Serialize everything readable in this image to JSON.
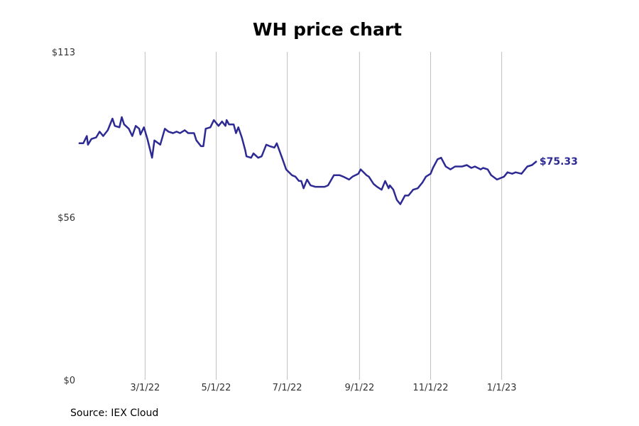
{
  "chart_data": {
    "type": "line",
    "title": "WH price chart",
    "source": "Source: IEX Cloud",
    "series_color": "#2e2a94",
    "grid": "vertical",
    "y_ticks": [
      {
        "value": 0,
        "label": "$0"
      },
      {
        "value": 56,
        "label": "$56"
      },
      {
        "value": 113,
        "label": "$113"
      }
    ],
    "ylim": [
      0,
      113
    ],
    "x_ticks": [
      {
        "date": "2022-03-01",
        "label": "3/1/22"
      },
      {
        "date": "2022-05-01",
        "label": "5/1/22"
      },
      {
        "date": "2022-07-01",
        "label": "7/1/22"
      },
      {
        "date": "2022-09-01",
        "label": "9/1/22"
      },
      {
        "date": "2022-11-01",
        "label": "11/1/22"
      },
      {
        "date": "2023-01-01",
        "label": "1/1/23"
      }
    ],
    "xlim": [
      "2022-01-01",
      "2023-03-31"
    ],
    "last_value_label": "$75.33",
    "series": [
      {
        "points": [
          [
            "2022-01-03",
            81.5
          ],
          [
            "2022-01-07",
            81.5
          ],
          [
            "2022-01-10",
            84.0
          ],
          [
            "2022-01-11",
            81.0
          ],
          [
            "2022-01-14",
            83.0
          ],
          [
            "2022-01-18",
            83.5
          ],
          [
            "2022-01-21",
            85.5
          ],
          [
            "2022-01-24",
            84.0
          ],
          [
            "2022-01-28",
            86.0
          ],
          [
            "2022-02-01",
            90.0
          ],
          [
            "2022-02-03",
            87.5
          ],
          [
            "2022-02-07",
            87.0
          ],
          [
            "2022-02-09",
            90.5
          ],
          [
            "2022-02-11",
            88.0
          ],
          [
            "2022-02-15",
            86.5
          ],
          [
            "2022-02-18",
            84.0
          ],
          [
            "2022-02-21",
            87.5
          ],
          [
            "2022-02-24",
            86.5
          ],
          [
            "2022-02-25",
            84.5
          ],
          [
            "2022-02-28",
            87.0
          ],
          [
            "2022-03-03",
            83.0
          ],
          [
            "2022-03-07",
            76.5
          ],
          [
            "2022-03-09",
            82.5
          ],
          [
            "2022-03-14",
            81.0
          ],
          [
            "2022-03-18",
            86.5
          ],
          [
            "2022-03-21",
            85.5
          ],
          [
            "2022-03-25",
            85.0
          ],
          [
            "2022-03-28",
            85.5
          ],
          [
            "2022-03-31",
            85.0
          ],
          [
            "2022-04-04",
            86.0
          ],
          [
            "2022-04-07",
            85.0
          ],
          [
            "2022-04-12",
            85.0
          ],
          [
            "2022-04-14",
            82.5
          ],
          [
            "2022-04-18",
            80.5
          ],
          [
            "2022-04-20",
            80.5
          ],
          [
            "2022-04-22",
            86.5
          ],
          [
            "2022-04-26",
            87.0
          ],
          [
            "2022-04-29",
            89.5
          ],
          [
            "2022-05-03",
            87.5
          ],
          [
            "2022-05-06",
            89.0
          ],
          [
            "2022-05-09",
            87.5
          ],
          [
            "2022-05-10",
            89.5
          ],
          [
            "2022-05-12",
            88.0
          ],
          [
            "2022-05-16",
            88.0
          ],
          [
            "2022-05-18",
            85.0
          ],
          [
            "2022-05-20",
            87.0
          ],
          [
            "2022-05-23",
            83.5
          ],
          [
            "2022-05-26",
            79.0
          ],
          [
            "2022-05-27",
            77.0
          ],
          [
            "2022-05-31",
            76.5
          ],
          [
            "2022-06-02",
            78.0
          ],
          [
            "2022-06-06",
            76.5
          ],
          [
            "2022-06-09",
            77.0
          ],
          [
            "2022-06-13",
            81.0
          ],
          [
            "2022-06-16",
            80.5
          ],
          [
            "2022-06-20",
            80.0
          ],
          [
            "2022-06-22",
            81.5
          ],
          [
            "2022-06-27",
            76.0
          ],
          [
            "2022-06-30",
            72.5
          ],
          [
            "2022-07-05",
            70.5
          ],
          [
            "2022-07-08",
            70.0
          ],
          [
            "2022-07-11",
            68.5
          ],
          [
            "2022-07-13",
            68.5
          ],
          [
            "2022-07-15",
            66.0
          ],
          [
            "2022-07-18",
            69.0
          ],
          [
            "2022-07-21",
            67.0
          ],
          [
            "2022-07-25",
            66.5
          ],
          [
            "2022-07-28",
            66.5
          ],
          [
            "2022-08-02",
            66.5
          ],
          [
            "2022-08-05",
            67.0
          ],
          [
            "2022-08-10",
            70.5
          ],
          [
            "2022-08-15",
            70.5
          ],
          [
            "2022-08-18",
            70.0
          ],
          [
            "2022-08-23",
            69.0
          ],
          [
            "2022-08-26",
            70.0
          ],
          [
            "2022-08-31",
            71.0
          ],
          [
            "2022-09-02",
            72.5
          ],
          [
            "2022-09-07",
            70.5
          ],
          [
            "2022-09-09",
            70.0
          ],
          [
            "2022-09-13",
            67.5
          ],
          [
            "2022-09-16",
            66.5
          ],
          [
            "2022-09-20",
            65.5
          ],
          [
            "2022-09-23",
            68.5
          ],
          [
            "2022-09-26",
            66.0
          ],
          [
            "2022-09-27",
            67.0
          ],
          [
            "2022-09-30",
            65.5
          ],
          [
            "2022-10-03",
            62.0
          ],
          [
            "2022-10-06",
            60.5
          ],
          [
            "2022-10-10",
            63.5
          ],
          [
            "2022-10-13",
            63.5
          ],
          [
            "2022-10-17",
            65.5
          ],
          [
            "2022-10-21",
            66.0
          ],
          [
            "2022-10-25",
            68.0
          ],
          [
            "2022-10-28",
            70.0
          ],
          [
            "2022-11-01",
            71.0
          ],
          [
            "2022-11-03",
            73.0
          ],
          [
            "2022-11-07",
            76.0
          ],
          [
            "2022-11-10",
            76.5
          ],
          [
            "2022-11-14",
            73.5
          ],
          [
            "2022-11-18",
            72.5
          ],
          [
            "2022-11-22",
            73.5
          ],
          [
            "2022-11-28",
            73.5
          ],
          [
            "2022-12-02",
            74.0
          ],
          [
            "2022-12-06",
            73.0
          ],
          [
            "2022-12-09",
            73.5
          ],
          [
            "2022-12-14",
            72.5
          ],
          [
            "2022-12-16",
            73.0
          ],
          [
            "2022-12-20",
            72.5
          ],
          [
            "2022-12-23",
            70.5
          ],
          [
            "2022-12-28",
            69.0
          ],
          [
            "2023-01-03",
            70.0
          ],
          [
            "2023-01-06",
            71.5
          ],
          [
            "2023-01-10",
            71.0
          ],
          [
            "2023-01-13",
            71.5
          ],
          [
            "2023-01-18",
            71.0
          ],
          [
            "2023-01-23",
            73.5
          ],
          [
            "2023-01-27",
            74.0
          ],
          [
            "2023-01-31",
            75.33
          ]
        ]
      }
    ]
  }
}
